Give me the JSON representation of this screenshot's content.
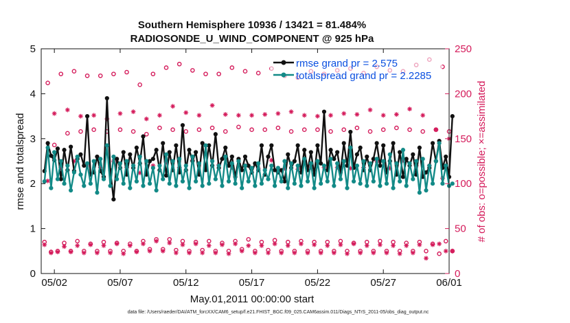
{
  "chart_data": {
    "type": "line",
    "title": "Southern Hemisphere 10936 / 13421 = 81.484%",
    "subtitle": "RADIOSONDE_U_WIND_COMPONENT @ 925 hPa",
    "xlabel": "May.01,2011 00:00:00 start",
    "ylabel_left": "rmse and totalspread",
    "ylabel_right": "# of obs: o=possible; ×=assimilated",
    "footnote": "data file: /Users/raeder/DAI/ATM_forcXX/CAM6_setup/f.e21.FHIST_BGC.f09_025.CAM6assim.011/Diags_NTrS_2011-05/obs_diag_output.nc",
    "xlim": [
      0.5,
      31.5
    ],
    "ylim_left": [
      0,
      5
    ],
    "ylim_right": [
      0,
      250
    ],
    "x_ticks": [
      {
        "x": 1.5,
        "label": "05/02"
      },
      {
        "x": 6.5,
        "label": "05/07"
      },
      {
        "x": 11.5,
        "label": "05/12"
      },
      {
        "x": 16.5,
        "label": "05/17"
      },
      {
        "x": 21.5,
        "label": "05/22"
      },
      {
        "x": 26.5,
        "label": "05/27"
      },
      {
        "x": 31.5,
        "label": "06/01"
      }
    ],
    "y_ticks_left": [
      "0",
      "1",
      "2",
      "3",
      "4",
      "5"
    ],
    "y_ticks_right": [
      "0",
      "50",
      "100",
      "150",
      "200",
      "250"
    ],
    "colors": {
      "rmse": "#111111",
      "spread": "#138a87",
      "obs": "#d41a5a",
      "axis": "#111111",
      "legend_text": "#0a4fe0"
    },
    "legend": [
      {
        "label": "rmse grand pr = 2.575",
        "series": "rmse"
      },
      {
        "label": "totalspread grand pr = 2.2285",
        "series": "spread"
      }
    ],
    "series": [
      {
        "name": "rmse",
        "axis": "left",
        "x_start": 0.75,
        "x_step": 0.25,
        "values": [
          2.28,
          2.9,
          2.62,
          2.52,
          2.78,
          2.1,
          2.75,
          2.3,
          2.82,
          2.28,
          2.55,
          2.65,
          2.4,
          3.5,
          2.2,
          2.25,
          2.6,
          2.28,
          2.15,
          3.9,
          2.3,
          1.65,
          2.55,
          2.35,
          2.7,
          2.2,
          2.65,
          2.35,
          2.8,
          2.45,
          3.05,
          2.2,
          2.5,
          2.55,
          2.75,
          2.3,
          2.9,
          2.18,
          2.7,
          2.3,
          2.85,
          2.25,
          3.3,
          2.3,
          2.75,
          2.5,
          2.7,
          2.2,
          2.9,
          2.3,
          2.85,
          2.4,
          3.1,
          2.35,
          2.55,
          2.8,
          2.4,
          2.6,
          2.15,
          2.55,
          2.3,
          2.6,
          2.4,
          2.25,
          2.45,
          2.3,
          2.85,
          2.2,
          2.6,
          2.85,
          2.3,
          2.25,
          2.3,
          2.05,
          2.65,
          2.35,
          2.5,
          2.85,
          2.25,
          2.75,
          2.3,
          2.7,
          2.2,
          2.85,
          2.45,
          3.6,
          2.3,
          2.75,
          2.55,
          2.7,
          2.25,
          2.9,
          2.4,
          3.15,
          2.35,
          2.65,
          2.8,
          2.3,
          2.6,
          2.3,
          2.55,
          2.9,
          2.4,
          2.85,
          2.25,
          2.5,
          2.9,
          2.2,
          2.7,
          2.15,
          2.55,
          2.4,
          2.65,
          2.2,
          2.8,
          2.15,
          2.25,
          2.35,
          2.9,
          2.5,
          2.95,
          2.35,
          2.6,
          2.15,
          3.5
        ]
      },
      {
        "name": "totalspread",
        "axis": "left",
        "x_start": 0.75,
        "x_step": 0.25,
        "values": [
          2.05,
          2.8,
          1.9,
          2.7,
          2.1,
          2.5,
          2.0,
          2.4,
          1.85,
          2.25,
          2.6,
          2.2,
          1.95,
          2.45,
          2.0,
          2.5,
          1.8,
          2.55,
          2.1,
          2.85,
          1.95,
          2.6,
          2.1,
          2.45,
          2.0,
          2.5,
          1.9,
          2.4,
          2.05,
          2.6,
          1.95,
          2.5,
          2.0,
          2.35,
          1.85,
          2.4,
          2.1,
          2.65,
          2.0,
          2.5,
          1.95,
          2.55,
          2.05,
          2.4,
          1.9,
          2.6,
          2.05,
          2.45,
          1.95,
          2.85,
          2.0,
          2.5,
          2.1,
          2.4,
          1.95,
          2.6,
          2.05,
          2.45,
          2.0,
          2.5,
          1.9,
          2.4,
          2.05,
          2.35,
          1.95,
          2.45,
          2.0,
          2.3,
          2.1,
          2.4,
          1.95,
          2.35,
          2.05,
          2.5,
          1.9,
          2.45,
          2.0,
          2.4,
          1.95,
          2.55,
          2.05,
          2.45,
          1.9,
          2.5,
          2.0,
          2.4,
          2.05,
          2.55,
          1.95,
          2.45,
          2.1,
          2.5,
          1.9,
          2.8,
          2.05,
          2.4,
          2.0,
          2.5,
          1.95,
          2.45,
          2.05,
          2.55,
          1.95,
          2.5,
          2.0,
          2.65,
          1.9,
          2.45,
          2.05,
          2.75,
          1.95,
          2.45,
          2.1,
          2.5,
          1.8,
          2.55,
          1.85,
          2.4,
          2.0,
          2.5,
          2.9,
          2.0,
          2.4,
          1.95,
          2.0
        ]
      },
      {
        "name": "possible",
        "axis": "right",
        "marker": "circle",
        "x_start": 0.75,
        "x_step": 0.25,
        "values": [
          35,
          212,
          24,
          143,
          25,
          222,
          34,
          156,
          25,
          225,
          36,
          158,
          25,
          220,
          33,
          160,
          25,
          220,
          35,
          158,
          25,
          222,
          34,
          160,
          25,
          224,
          33,
          158,
          25,
          210,
          36,
          155,
          27,
          222,
          38,
          162,
          27,
          229,
          38,
          160,
          26,
          233,
          36,
          158,
          25,
          226,
          35,
          160,
          26,
          222,
          36,
          162,
          25,
          222,
          34,
          158,
          25,
          229,
          36,
          163,
          27,
          225,
          38,
          160,
          25,
          223,
          35,
          160,
          26,
          228,
          37,
          162,
          25,
          220,
          35,
          158,
          25,
          218,
          36,
          160,
          25,
          225,
          35,
          160,
          25,
          222,
          35,
          158,
          25,
          226,
          36,
          160,
          25,
          228,
          34,
          162,
          25,
          223,
          35,
          158,
          25,
          230,
          36,
          160,
          25,
          226,
          35,
          162,
          25,
          225,
          34,
          160,
          25,
          232,
          35,
          158,
          25,
          238,
          33,
          160,
          22,
          230,
          36,
          158,
          25
        ]
      },
      {
        "name": "assimilated",
        "axis": "right",
        "marker": "star",
        "x_start": 0.75,
        "x_step": 0.25,
        "values": [
          32,
          103,
          23,
          178,
          24,
          118,
          30,
          182,
          24,
          125,
          31,
          175,
          23,
          120,
          32,
          176,
          23,
          118,
          31,
          172,
          23,
          125,
          33,
          178,
          22,
          118,
          31,
          180,
          24,
          112,
          33,
          172,
          25,
          120,
          36,
          176,
          25,
          124,
          34,
          186,
          23,
          118,
          32,
          179,
          23,
          126,
          33,
          176,
          23,
          117,
          31,
          187,
          23,
          121,
          32,
          177,
          22,
          118,
          33,
          176,
          25,
          120,
          31,
          176,
          23,
          117,
          31,
          177,
          23,
          126,
          33,
          178,
          23,
          117,
          31,
          180,
          23,
          116,
          33,
          176,
          23,
          118,
          32,
          175,
          23,
          118,
          31,
          176,
          23,
          118,
          32,
          178,
          22,
          117,
          33,
          177,
          23,
          118,
          31,
          182,
          23,
          125,
          32,
          176,
          23,
          117,
          31,
          177,
          22,
          126,
          31,
          183,
          23,
          120,
          32,
          176,
          17,
          120,
          32,
          160,
          33,
          106,
          25,
          150,
          25
        ]
      }
    ]
  }
}
